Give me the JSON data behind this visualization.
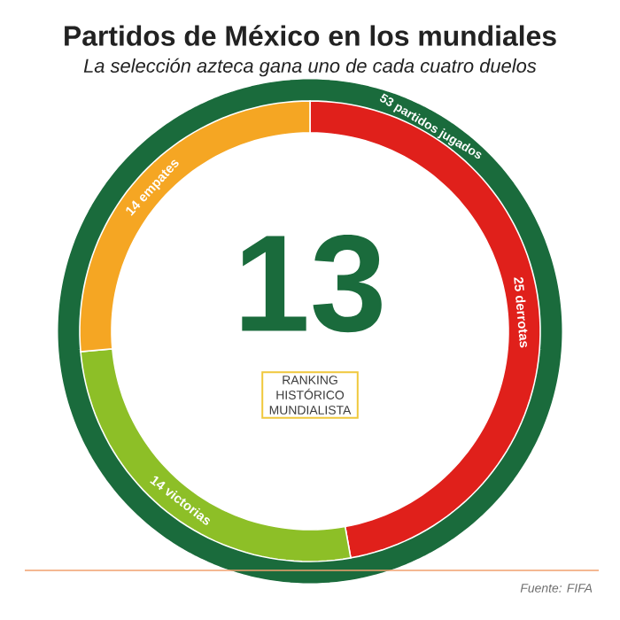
{
  "chart_data": {
    "type": "donut",
    "title": "Partidos de México en los mundiales",
    "subtitle": "La selección azteca gana uno de cada cuatro duelos",
    "categories": [
      "25 derrotas",
      "14 victorias",
      "14 empates"
    ],
    "values": [
      25,
      14,
      14
    ],
    "colors": [
      "#e0201b",
      "#8dbf27",
      "#f5a623"
    ],
    "annotations": [
      "53 partidos jugados",
      "13",
      "RANKING HISTÓRICO MUNDIALISTA",
      "Fuente: FIFA"
    ]
  }
}
